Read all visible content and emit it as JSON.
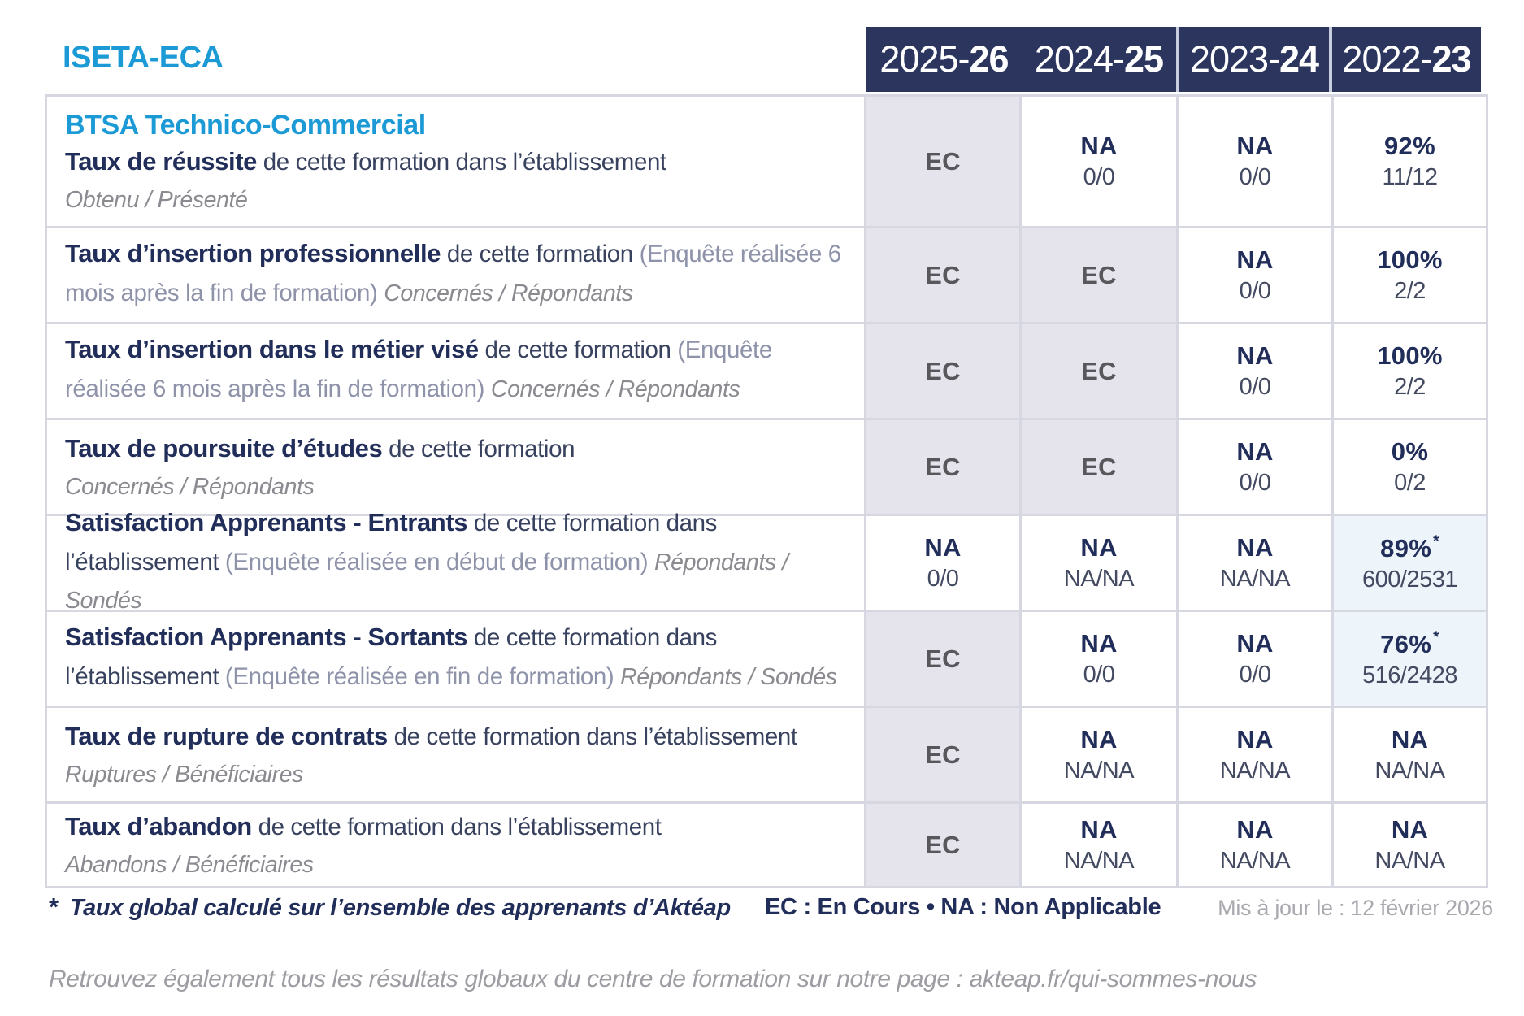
{
  "brand": "ISETA-ECA",
  "program": "BTSA Technico-Commercial",
  "columns": [
    {
      "prefix": "2025-",
      "suffix": "26"
    },
    {
      "prefix": "2024-",
      "suffix": "25"
    },
    {
      "prefix": "2023-",
      "suffix": "24"
    },
    {
      "prefix": "2022-",
      "suffix": "23"
    }
  ],
  "rows": [
    {
      "segments": [
        {
          "t": "Taux de réussite",
          "k": "b"
        },
        {
          "t": " de cette formation dans l’établissement",
          "k": "p"
        }
      ],
      "subline": "Obtenu / Présenté",
      "values": [
        {
          "m": "EC",
          "s": "",
          "c": "ec"
        },
        {
          "m": "NA",
          "s": "0/0",
          "c": "na"
        },
        {
          "m": "NA",
          "s": "0/0",
          "c": "na"
        },
        {
          "m": "92%",
          "s": "11/12",
          "c": "na"
        }
      ]
    },
    {
      "segments": [
        {
          "t": "Taux d’insertion professionnelle",
          "k": "b"
        },
        {
          "t": " de cette formation ",
          "k": "p"
        },
        {
          "t": "(Enquête réalisée 6 mois après la fin de formation) ",
          "k": "g"
        },
        {
          "t": "Concernés / Répondants",
          "k": "i"
        }
      ],
      "subline": null,
      "values": [
        {
          "m": "EC",
          "s": "",
          "c": "ec"
        },
        {
          "m": "EC",
          "s": "",
          "c": "ec"
        },
        {
          "m": "NA",
          "s": "0/0",
          "c": "na"
        },
        {
          "m": "100%",
          "s": "2/2",
          "c": "na"
        }
      ]
    },
    {
      "segments": [
        {
          "t": "Taux d’insertion dans le métier visé",
          "k": "b"
        },
        {
          "t": " de cette formation ",
          "k": "p"
        },
        {
          "t": "(Enquête réalisée 6 mois après la fin de formation) ",
          "k": "g"
        },
        {
          "t": "Concernés / Répondants",
          "k": "i"
        }
      ],
      "subline": null,
      "values": [
        {
          "m": "EC",
          "s": "",
          "c": "ec"
        },
        {
          "m": "EC",
          "s": "",
          "c": "ec"
        },
        {
          "m": "NA",
          "s": "0/0",
          "c": "na"
        },
        {
          "m": "100%",
          "s": "2/2",
          "c": "na"
        }
      ]
    },
    {
      "segments": [
        {
          "t": "Taux de poursuite d’études",
          "k": "b"
        },
        {
          "t": " de cette formation",
          "k": "p"
        }
      ],
      "subline": "Concernés / Répondants",
      "values": [
        {
          "m": "EC",
          "s": "",
          "c": "ec"
        },
        {
          "m": "EC",
          "s": "",
          "c": "ec"
        },
        {
          "m": "NA",
          "s": "0/0",
          "c": "na"
        },
        {
          "m": "0%",
          "s": "0/2",
          "c": "na"
        }
      ]
    },
    {
      "segments": [
        {
          "t": "Satisfaction Apprenants - Entrants",
          "k": "b"
        },
        {
          "t": " de cette formation dans l’établissement ",
          "k": "p"
        },
        {
          "t": "(Enquête réalisée en début de formation) ",
          "k": "g"
        },
        {
          "t": "Répondants / Sondés",
          "k": "i"
        }
      ],
      "subline": null,
      "values": [
        {
          "m": "NA",
          "s": "0/0",
          "c": "na"
        },
        {
          "m": "NA",
          "s": "NA/NA",
          "c": "na"
        },
        {
          "m": "NA",
          "s": "NA/NA",
          "c": "na"
        },
        {
          "m": "89%",
          "s": "600/2531",
          "c": "hl",
          "star": true
        }
      ]
    },
    {
      "segments": [
        {
          "t": "Satisfaction Apprenants - Sortants",
          "k": "b"
        },
        {
          "t": " de cette formation dans l’établissement ",
          "k": "p"
        },
        {
          "t": "(Enquête réalisée en fin de formation) ",
          "k": "g"
        },
        {
          "t": "Répondants / Sondés",
          "k": "i"
        }
      ],
      "subline": null,
      "values": [
        {
          "m": "EC",
          "s": "",
          "c": "ec"
        },
        {
          "m": "NA",
          "s": "0/0",
          "c": "na"
        },
        {
          "m": "NA",
          "s": "0/0",
          "c": "na"
        },
        {
          "m": "76%",
          "s": "516/2428",
          "c": "hl",
          "star": true
        }
      ]
    },
    {
      "segments": [
        {
          "t": "Taux de rupture de contrats",
          "k": "b"
        },
        {
          "t": " de cette formation dans l’établissement",
          "k": "p"
        }
      ],
      "subline": "Ruptures / Bénéficiaires",
      "values": [
        {
          "m": "EC",
          "s": "",
          "c": "ec"
        },
        {
          "m": "NA",
          "s": "NA/NA",
          "c": "na"
        },
        {
          "m": "NA",
          "s": "NA/NA",
          "c": "na"
        },
        {
          "m": "NA",
          "s": "NA/NA",
          "c": "na"
        }
      ]
    },
    {
      "segments": [
        {
          "t": "Taux d’abandon",
          "k": "b"
        },
        {
          "t": " de cette formation dans l’établissement",
          "k": "p"
        }
      ],
      "subline": "Abandons / Bénéficiaires",
      "values": [
        {
          "m": "EC",
          "s": "",
          "c": "ec"
        },
        {
          "m": "NA",
          "s": "NA/NA",
          "c": "na"
        },
        {
          "m": "NA",
          "s": "NA/NA",
          "c": "na"
        },
        {
          "m": "NA",
          "s": "NA/NA",
          "c": "na"
        }
      ]
    }
  ],
  "footer": {
    "star": "*",
    "note": "Taux global calculé sur l’ensemble des apprenants d’Aktéap",
    "legend": "EC : En Cours  •  NA : Non Applicable",
    "updated": "Mis à jour le : 12 février 2026",
    "bottom": "Retrouvez également tous les résultats globaux du centre de formation sur notre page : akteap.fr/qui-sommes-nous"
  },
  "colors": {
    "header_navy": "#2b355e",
    "navy_text": "#222e5a",
    "accent_blue": "#1b9ad6",
    "ec_cell_bg": "#e5e4ed",
    "highlight_cell_bg": "#edf4fa",
    "grid_line": "#d7d7e1"
  }
}
